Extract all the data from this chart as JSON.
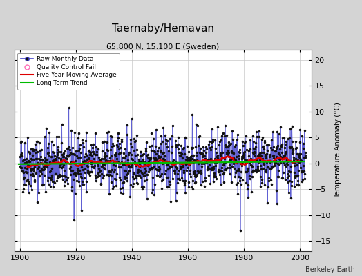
{
  "title": "Taernaby/Hemavan",
  "subtitle": "65.800 N, 15.100 E (Sweden)",
  "ylabel": "Temperature Anomaly (°C)",
  "credit": "Berkeley Earth",
  "xlim": [
    1898,
    2004
  ],
  "ylim": [
    -17,
    22
  ],
  "yticks": [
    -15,
    -10,
    -5,
    0,
    5,
    10,
    15,
    20
  ],
  "xticks": [
    1900,
    1920,
    1940,
    1960,
    1980,
    2000
  ],
  "fig_bg_color": "#d4d4d4",
  "plot_bg_color": "#ffffff",
  "raw_line_color": "#4444cc",
  "raw_dot_color": "#111111",
  "ma_color": "#dd0000",
  "trend_color": "#00bb00",
  "qc_fail_color": "#ff69b4",
  "seed": 42,
  "n_years": 102,
  "start_year": 1900,
  "noise_std": 2.8,
  "ma_window": 60
}
